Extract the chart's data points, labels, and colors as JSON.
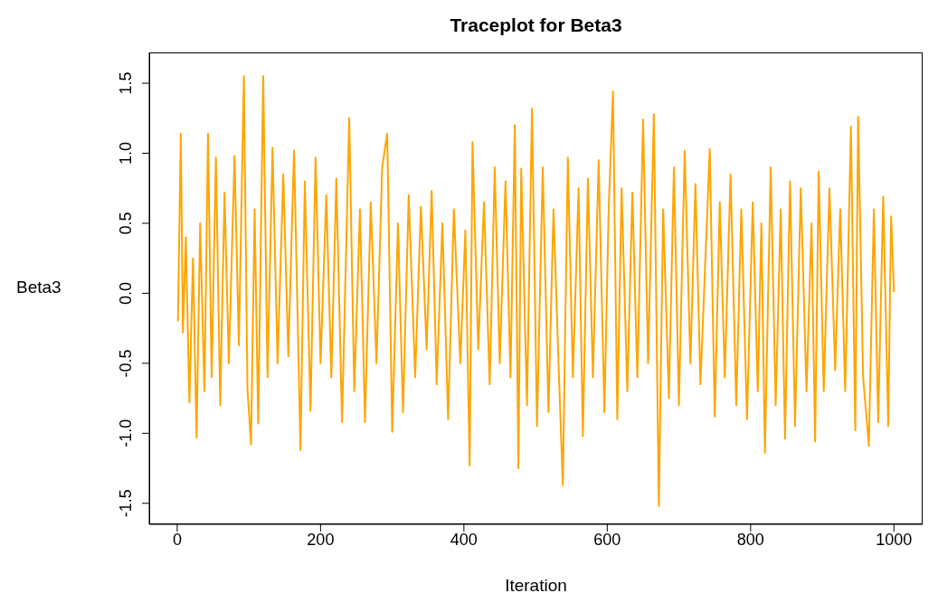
{
  "chart_data": {
    "type": "line",
    "title": "Traceplot for Beta3",
    "xlabel": "Iteration",
    "ylabel": "Beta3",
    "xlim": [
      -39,
      1040
    ],
    "ylim": [
      -1.65,
      1.72
    ],
    "xticks": [
      0,
      200,
      400,
      600,
      800,
      1000
    ],
    "yticks": [
      -1.5,
      {
        "value": -1,
        "label": "-1.0"
      },
      -0.5,
      {
        "value": 0,
        "label": "0.0"
      },
      0.5,
      {
        "value": 1,
        "label": "1.0"
      },
      1.5
    ],
    "x": [
      1,
      5,
      8,
      12,
      17,
      22,
      27,
      32,
      38,
      43,
      48,
      54,
      60,
      66,
      72,
      80,
      86,
      93,
      98,
      103,
      108,
      113,
      120,
      126,
      133,
      140,
      148,
      155,
      163,
      172,
      178,
      186,
      193,
      200,
      208,
      215,
      222,
      230,
      240,
      247,
      255,
      262,
      270,
      278,
      286,
      293,
      300,
      308,
      315,
      323,
      332,
      340,
      348,
      355,
      362,
      370,
      378,
      386,
      395,
      402,
      408,
      412,
      420,
      428,
      436,
      443,
      450,
      458,
      465,
      471,
      476,
      480,
      488,
      495,
      502,
      510,
      518,
      525,
      532,
      538,
      545,
      552,
      560,
      566,
      573,
      580,
      588,
      596,
      602,
      608,
      614,
      620,
      628,
      635,
      642,
      650,
      657,
      665,
      672,
      678,
      686,
      693,
      700,
      708,
      716,
      723,
      730,
      743,
      750,
      757,
      764,
      772,
      780,
      787,
      795,
      803,
      810,
      815,
      820,
      828,
      835,
      842,
      848,
      855,
      862,
      870,
      878,
      885,
      890,
      895,
      902,
      910,
      918,
      925,
      932,
      940,
      946,
      950,
      957,
      965,
      972,
      978,
      985,
      992,
      996,
      1000
    ],
    "series": [
      {
        "color": "#ffa500",
        "values": [
          -0.2,
          1.14,
          -0.28,
          0.4,
          -0.78,
          0.25,
          -1.03,
          0.5,
          -0.7,
          1.14,
          -0.6,
          0.97,
          -0.8,
          0.72,
          -0.5,
          0.98,
          -0.37,
          1.55,
          -0.68,
          -1.08,
          0.6,
          -0.93,
          1.55,
          -0.6,
          1.04,
          -0.5,
          0.85,
          -0.45,
          1.02,
          -1.12,
          0.8,
          -0.84,
          0.97,
          -0.5,
          0.7,
          -0.6,
          0.82,
          -0.92,
          1.25,
          -0.7,
          0.6,
          -0.92,
          0.65,
          -0.5,
          0.9,
          1.14,
          -0.99,
          0.5,
          -0.85,
          0.7,
          -0.6,
          0.62,
          -0.4,
          0.73,
          -0.65,
          0.5,
          -0.9,
          0.6,
          -0.5,
          0.45,
          -1.23,
          1.08,
          -0.4,
          0.65,
          -0.65,
          0.9,
          -0.5,
          0.8,
          -0.6,
          1.2,
          -1.25,
          0.89,
          -0.8,
          1.32,
          -0.95,
          0.9,
          -0.85,
          0.6,
          -0.5,
          -1.37,
          0.97,
          -0.6,
          0.75,
          -1.02,
          0.82,
          -0.6,
          0.95,
          -0.85,
          0.6,
          1.44,
          -0.9,
          0.75,
          -0.7,
          0.72,
          -0.6,
          1.24,
          -0.5,
          1.28,
          -1.52,
          0.6,
          -0.75,
          0.9,
          -0.8,
          1.02,
          -0.5,
          0.78,
          -0.65,
          1.03,
          -0.88,
          0.65,
          -0.6,
          0.85,
          -0.8,
          0.6,
          -0.9,
          0.65,
          -0.7,
          0.5,
          -1.14,
          0.9,
          -0.8,
          0.6,
          -1.04,
          0.8,
          -0.95,
          0.75,
          -0.7,
          0.5,
          -1.06,
          0.87,
          -0.7,
          0.75,
          -0.55,
          0.6,
          -0.7,
          1.19,
          -0.98,
          1.26,
          -0.6,
          -1.09,
          0.6,
          -0.92,
          0.69,
          -0.95,
          0.55,
          0.01
        ]
      }
    ]
  }
}
